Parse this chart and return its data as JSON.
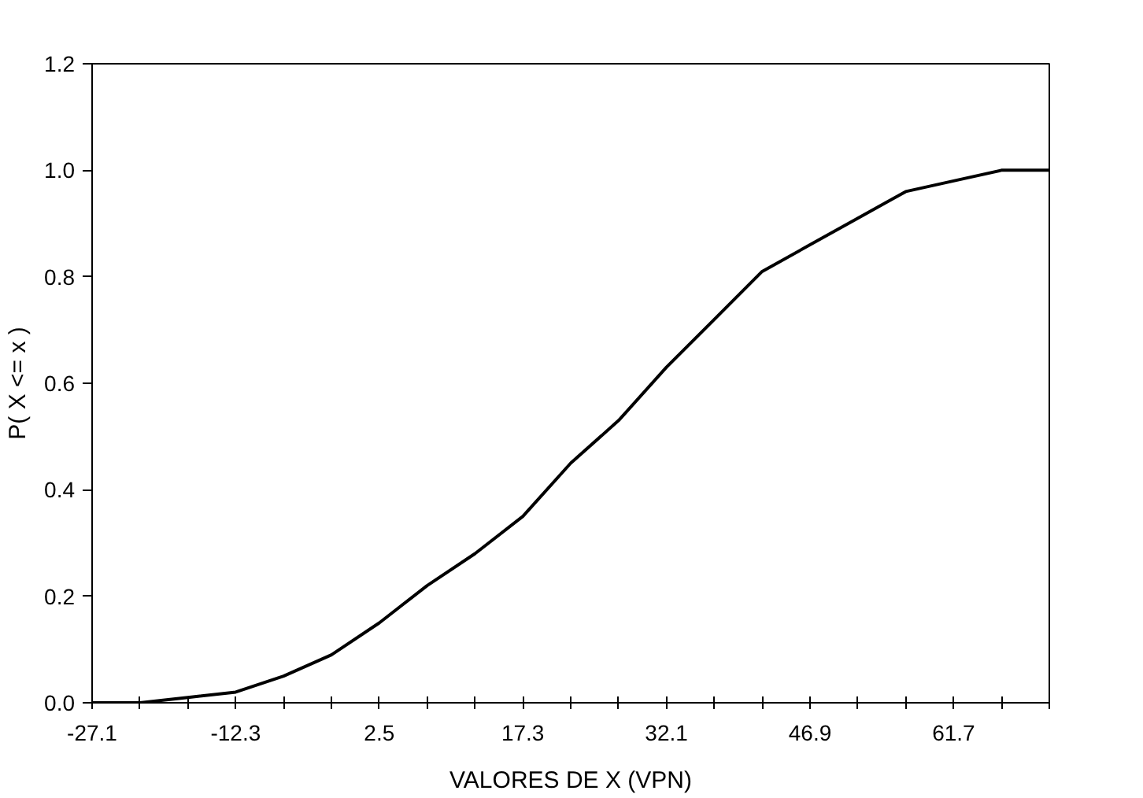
{
  "chart_data": {
    "type": "line",
    "xlabel": "VALORES DE X (VPN)",
    "ylabel": "P( X <= x )",
    "categories": [
      "-27.1",
      null,
      null,
      "-12.3",
      null,
      null,
      "2.5",
      null,
      null,
      "17.3",
      null,
      null,
      "32.1",
      null,
      null,
      "46.9",
      null,
      null,
      "61.7",
      null,
      null
    ],
    "series": [
      {
        "color": "#000000",
        "values": [
          0,
          0,
          0.01,
          0.02,
          0.05,
          0.09,
          0.15,
          0.22,
          0.28,
          0.35,
          0.45,
          0.53,
          0.63,
          0.72,
          0.81,
          0.86,
          0.91,
          0.96,
          0.98,
          1.0,
          1.0
        ]
      }
    ],
    "ylim": [
      0,
      1.2
    ],
    "yticks": [
      {
        "value": 0,
        "label": "0.0"
      },
      {
        "value": 0.2,
        "label": "0.2"
      },
      {
        "value": 0.4,
        "label": "0.4"
      },
      {
        "value": 0.6,
        "label": "0.6"
      },
      {
        "value": 0.8,
        "label": "0.8"
      },
      {
        "value": 1.0,
        "label": "1.0"
      },
      {
        "value": 1.2,
        "label": "1.2"
      }
    ],
    "grid": false,
    "marker": "none",
    "line_style": "solid"
  }
}
